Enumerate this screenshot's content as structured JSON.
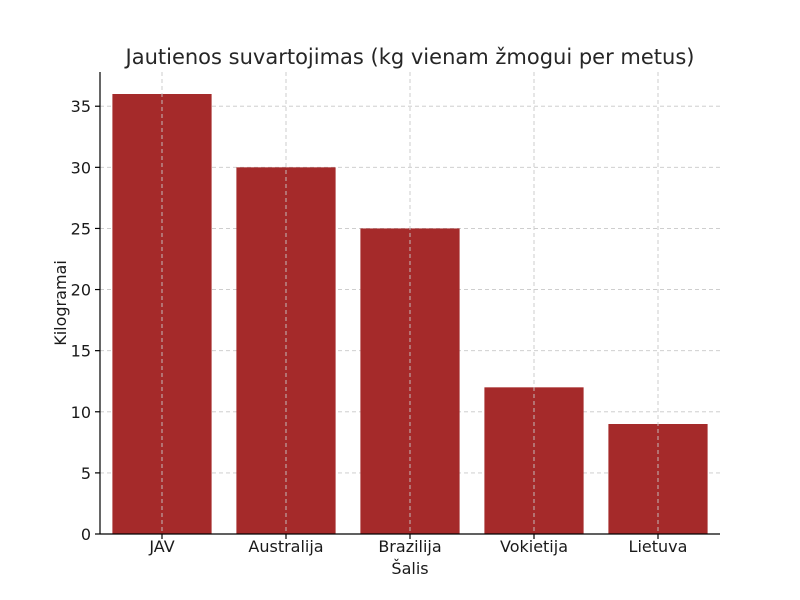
{
  "chart_data": {
    "type": "bar",
    "title": "Jautienos suvartojimas (kg vienam žmogui per metus)",
    "xlabel": "Šalis",
    "ylabel": "Kilogramai",
    "categories": [
      "JAV",
      "Australija",
      "Brazilija",
      "Vokietija",
      "Lietuva"
    ],
    "values": [
      36,
      30,
      25,
      12,
      9
    ],
    "ylim": [
      0,
      37.8
    ],
    "yticks": [
      0,
      5,
      10,
      15,
      20,
      25,
      30,
      35
    ],
    "grid": true,
    "bar_color": "#a52a2a"
  }
}
